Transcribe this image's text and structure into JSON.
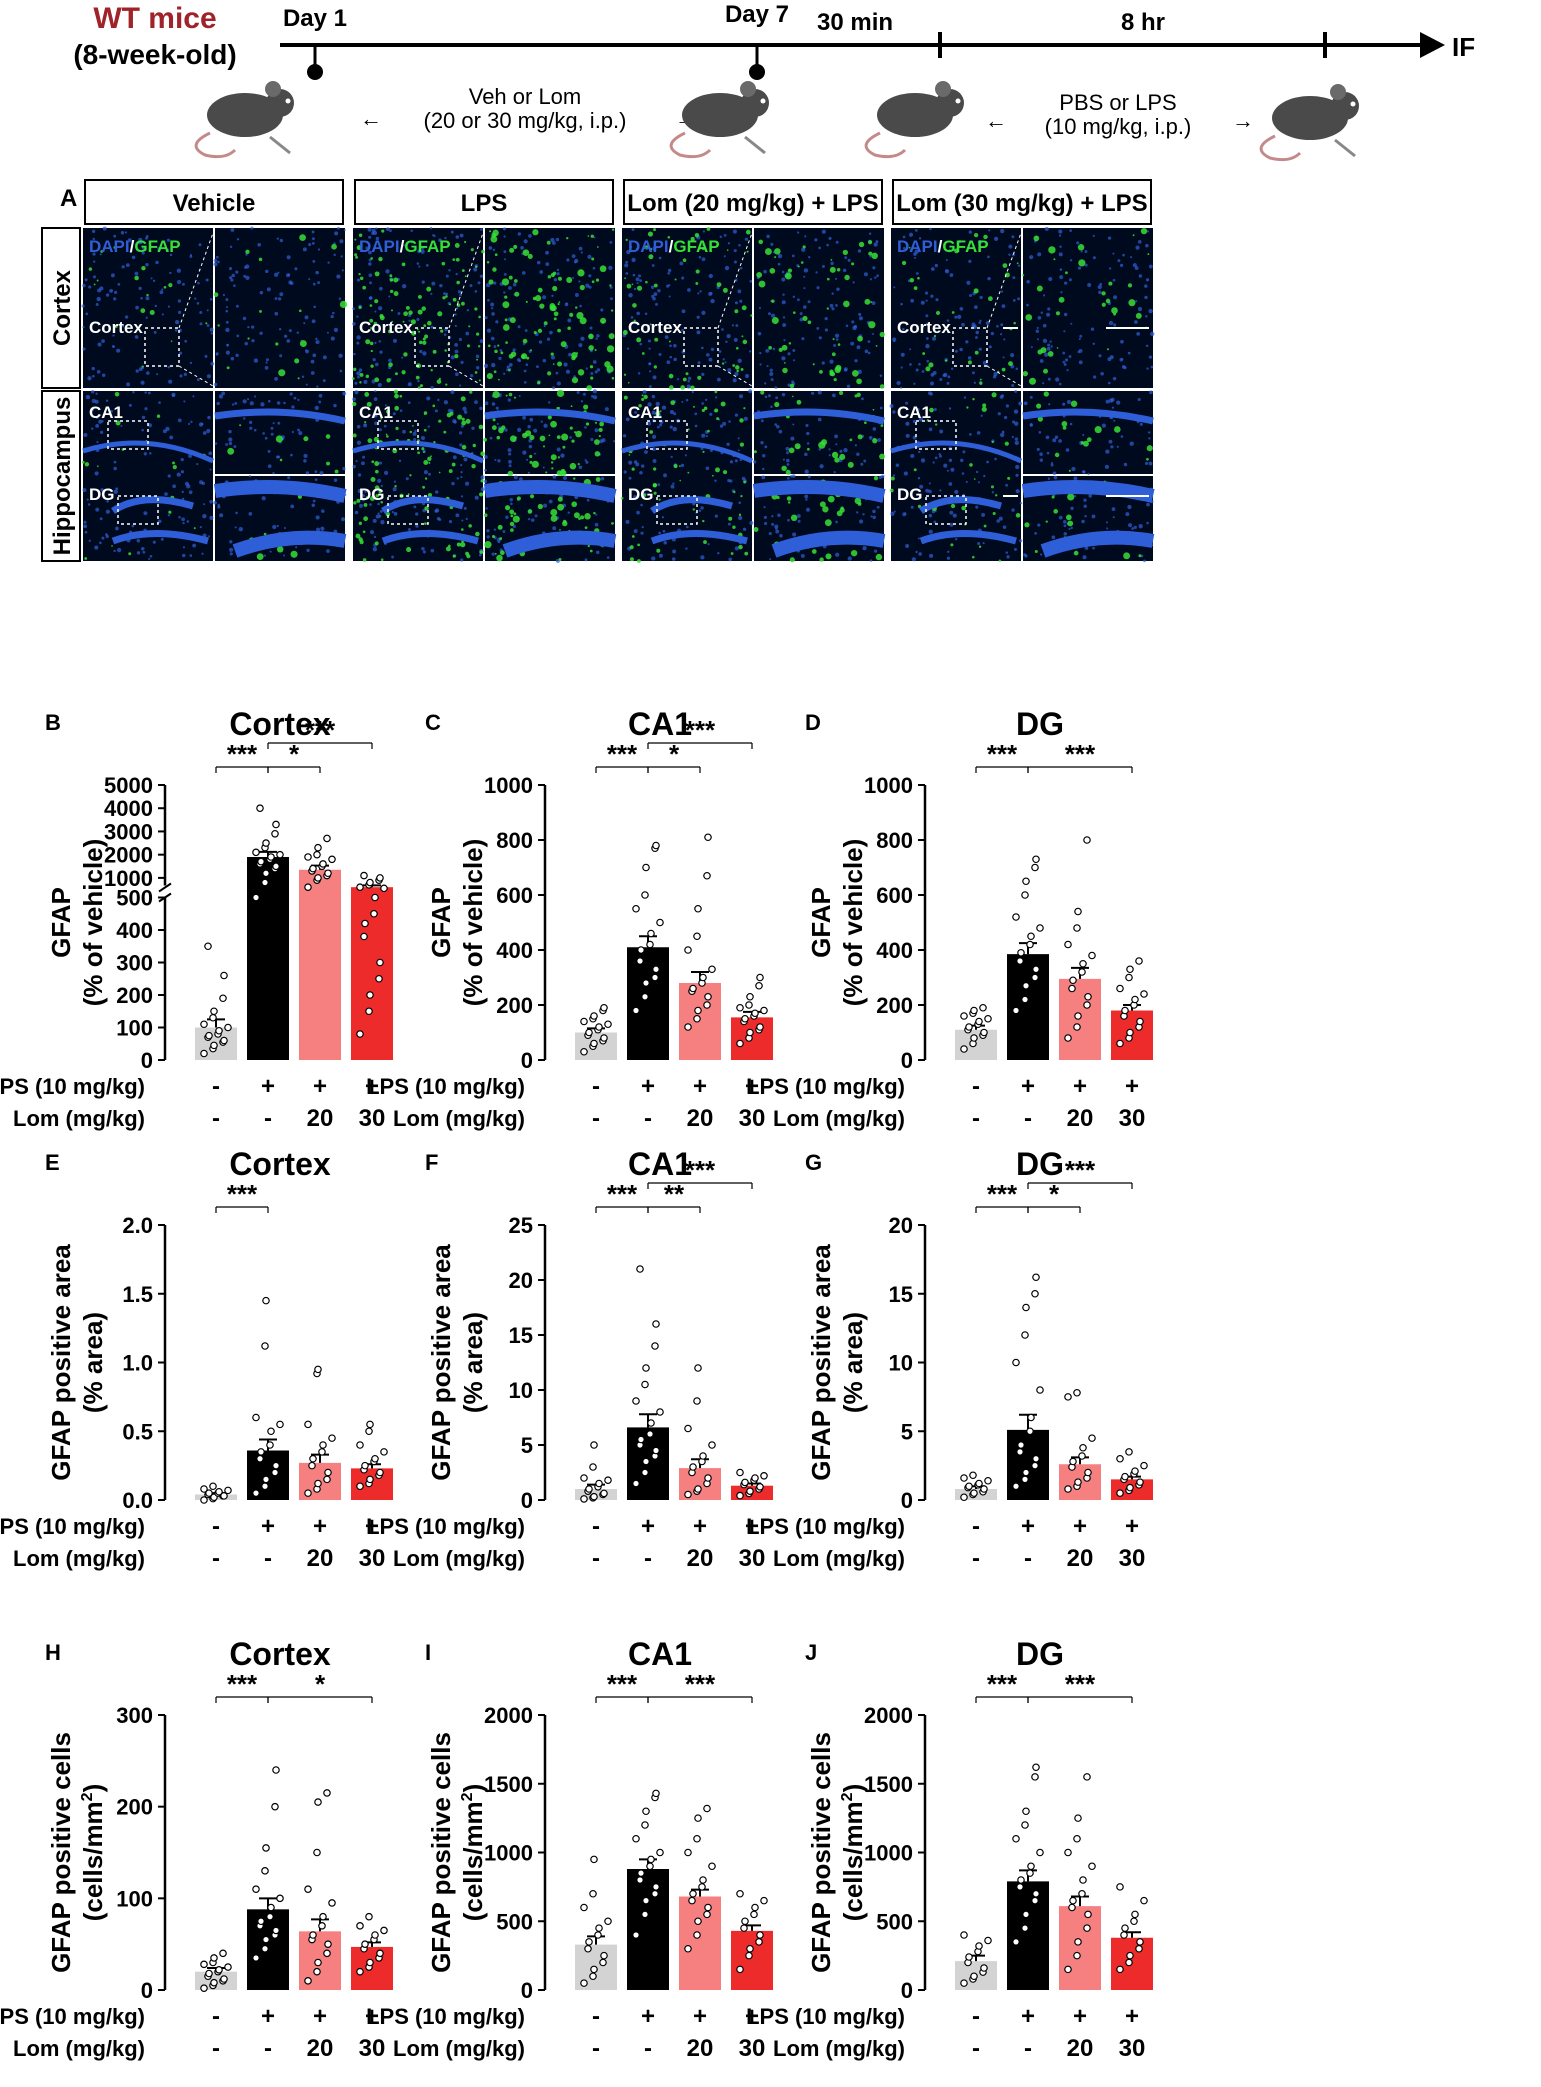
{
  "timeline": {
    "strain": "WT mice",
    "age": "(8-week-old)",
    "day1": "Day 1",
    "day7": "Day 7",
    "t30": "30 min",
    "t8": "8 hr",
    "end": "IF",
    "tx1_line1": "Veh or Lom",
    "tx1_line2": "(20 or 30 mg/kg, i.p.)",
    "tx2_line1": "PBS or LPS",
    "tx2_line2": "(10 mg/kg, i.p.)",
    "colors": {
      "strain": "#a0232a",
      "mouse": "#4a4a4a"
    }
  },
  "panelA": {
    "letter": "A",
    "groups": [
      "Vehicle",
      "LPS",
      "Lom (20 mg/kg) + LPS",
      "Lom (30 mg/kg) + LPS"
    ],
    "rows": [
      "Cortex",
      "Hippocampus"
    ],
    "stain_dapi": "DAPI",
    "stain_sep": "/",
    "stain_gfap": "GFAP",
    "region_cortex": "Cortex",
    "region_ca1": "CA1",
    "region_dg": "DG",
    "gfap_intensity": [
      0.15,
      1.0,
      0.55,
      0.3
    ],
    "colors": {
      "dapi": "#2f5fd8",
      "gfap": "#36e036"
    }
  },
  "legend_rows": {
    "lps_label": "LPS (10 mg/kg)",
    "lom_label": "Lom (mg/kg)",
    "lps_values": [
      "-",
      "+",
      "+",
      "+"
    ],
    "lom_values": [
      "-",
      "-",
      "20",
      "30"
    ]
  },
  "bar_colors": [
    "#d3d3d3",
    "#000000",
    "#f68080",
    "#ee2b2b"
  ],
  "chart_data": [
    {
      "type": "bar",
      "panel": "B",
      "title": "Cortex",
      "ylabel_line1": "GFAP",
      "ylabel_line2": "(% of vehicle)",
      "broken_axis": true,
      "ticks_low": [
        "0",
        "100",
        "200",
        "300",
        "400",
        "500"
      ],
      "ticks_high": [
        "1000",
        "2000",
        "3000",
        "4000",
        "5000"
      ],
      "ylim_low": [
        0,
        500
      ],
      "ylim_high": [
        500,
        5000
      ],
      "categories": [
        "Vehicle",
        "LPS",
        "Lom20+LPS",
        "Lom30+LPS"
      ],
      "values": [
        100,
        1900,
        1350,
        600
      ],
      "errors": [
        25,
        220,
        180,
        80
      ],
      "points": [
        [
          20,
          35,
          45,
          55,
          60,
          70,
          75,
          80,
          90,
          100,
          110,
          130,
          150,
          190,
          260,
          350
        ],
        [
          500,
          800,
          1200,
          1400,
          1500,
          1600,
          1700,
          1800,
          1900,
          2000,
          2100,
          2300,
          2500,
          2900,
          3300,
          4000
        ],
        [
          600,
          900,
          1000,
          1100,
          1200,
          1300,
          1400,
          1500,
          1600,
          1800,
          1900,
          2000,
          2300,
          2700
        ],
        [
          80,
          150,
          200,
          250,
          300,
          380,
          420,
          450,
          500,
          550,
          600,
          700,
          800,
          900,
          1000,
          1100
        ]
      ],
      "sig": [
        {
          "from": 0,
          "to": 1,
          "label": "***",
          "level": 0
        },
        {
          "from": 1,
          "to": 2,
          "label": "*",
          "level": 0
        },
        {
          "from": 1,
          "to": 3,
          "label": "***",
          "level": 1
        }
      ]
    },
    {
      "type": "bar",
      "panel": "C",
      "title": "CA1",
      "ylabel_line1": "GFAP",
      "ylabel_line2": "(% of vehicle)",
      "ticks": [
        "0",
        "200",
        "400",
        "600",
        "800",
        "1000"
      ],
      "ylim": [
        0,
        1000
      ],
      "categories": [
        "Vehicle",
        "LPS",
        "Lom20+LPS",
        "Lom30+LPS"
      ],
      "values": [
        100,
        410,
        280,
        155
      ],
      "errors": [
        15,
        40,
        40,
        20
      ],
      "points": [
        [
          30,
          50,
          60,
          70,
          80,
          90,
          100,
          110,
          120,
          130,
          140,
          150,
          160,
          180,
          190
        ],
        [
          180,
          230,
          280,
          300,
          330,
          360,
          400,
          420,
          460,
          500,
          550,
          600,
          700,
          770,
          780
        ],
        [
          120,
          150,
          180,
          200,
          230,
          250,
          260,
          280,
          300,
          330,
          400,
          450,
          550,
          670,
          810
        ],
        [
          60,
          80,
          100,
          110,
          120,
          140,
          150,
          160,
          170,
          180,
          190,
          200,
          230,
          270,
          300
        ]
      ],
      "sig": [
        {
          "from": 0,
          "to": 1,
          "label": "***",
          "level": 0
        },
        {
          "from": 1,
          "to": 2,
          "label": "*",
          "level": 0
        },
        {
          "from": 1,
          "to": 3,
          "label": "***",
          "level": 1
        }
      ]
    },
    {
      "type": "bar",
      "panel": "D",
      "title": "DG",
      "ylabel_line1": "GFAP",
      "ylabel_line2": "(% of vehicle)",
      "ticks": [
        "0",
        "200",
        "400",
        "600",
        "800",
        "1000"
      ],
      "ylim": [
        0,
        1000
      ],
      "categories": [
        "Vehicle",
        "LPS",
        "Lom20+LPS",
        "Lom30+LPS"
      ],
      "values": [
        110,
        385,
        295,
        180
      ],
      "errors": [
        15,
        40,
        40,
        20
      ],
      "points": [
        [
          40,
          60,
          80,
          90,
          100,
          110,
          120,
          130,
          140,
          150,
          160,
          170,
          180,
          190
        ],
        [
          180,
          220,
          270,
          300,
          330,
          360,
          390,
          420,
          450,
          480,
          520,
          600,
          650,
          700,
          730
        ],
        [
          80,
          120,
          160,
          200,
          230,
          260,
          290,
          320,
          350,
          380,
          420,
          480,
          540,
          800
        ],
        [
          60,
          80,
          100,
          120,
          140,
          160,
          180,
          200,
          220,
          240,
          260,
          300,
          330,
          360
        ]
      ],
      "sig": [
        {
          "from": 0,
          "to": 1,
          "label": "***",
          "level": 0
        },
        {
          "from": 1,
          "to": 3,
          "label": "***",
          "level": 0
        }
      ]
    },
    {
      "type": "bar",
      "panel": "E",
      "title": "Cortex",
      "ylabel_line1": "GFAP positive area",
      "ylabel_line2": "(% area)",
      "ticks": [
        "0.0",
        "0.5",
        "1.0",
        "1.5",
        "2.0"
      ],
      "ylim": [
        0,
        2
      ],
      "categories": [
        "Vehicle",
        "LPS",
        "Lom20+LPS",
        "Lom30+LPS"
      ],
      "values": [
        0.04,
        0.36,
        0.27,
        0.23
      ],
      "errors": [
        0.01,
        0.08,
        0.06,
        0.03
      ],
      "points": [
        [
          0.0,
          0.01,
          0.02,
          0.03,
          0.03,
          0.04,
          0.05,
          0.05,
          0.06,
          0.07,
          0.08,
          0.1
        ],
        [
          0.05,
          0.1,
          0.15,
          0.2,
          0.25,
          0.3,
          0.35,
          0.4,
          0.5,
          0.55,
          0.6,
          1.12,
          1.45
        ],
        [
          0.05,
          0.08,
          0.12,
          0.15,
          0.2,
          0.25,
          0.3,
          0.35,
          0.4,
          0.45,
          0.55,
          0.92,
          0.95
        ],
        [
          0.1,
          0.12,
          0.15,
          0.18,
          0.2,
          0.22,
          0.25,
          0.28,
          0.3,
          0.35,
          0.4,
          0.5,
          0.55
        ]
      ],
      "sig": [
        {
          "from": 0,
          "to": 1,
          "label": "***",
          "level": 0
        }
      ]
    },
    {
      "type": "bar",
      "panel": "F",
      "title": "CA1",
      "ylabel_line1": "GFAP positive area",
      "ylabel_line2": "(% area)",
      "ticks": [
        "0",
        "5",
        "10",
        "15",
        "20",
        "25"
      ],
      "ylim": [
        0,
        25
      ],
      "categories": [
        "Vehicle",
        "LPS",
        "Lom20+LPS",
        "Lom30+LPS"
      ],
      "values": [
        1.0,
        6.6,
        2.9,
        1.3
      ],
      "errors": [
        0.4,
        1.2,
        0.8,
        0.2
      ],
      "points": [
        [
          0.1,
          0.2,
          0.3,
          0.5,
          0.6,
          0.8,
          1.0,
          1.2,
          1.5,
          1.8,
          2.0,
          3.0,
          5.0
        ],
        [
          1.5,
          2.5,
          3.5,
          4.0,
          4.5,
          5.0,
          5.5,
          6.0,
          7.0,
          8.0,
          9.0,
          10.5,
          12.0,
          14.0,
          16.0,
          21.0
        ],
        [
          0.5,
          0.8,
          1.0,
          1.5,
          2.0,
          2.5,
          3.0,
          3.5,
          4.0,
          5.0,
          6.5,
          9.0,
          12.0
        ],
        [
          0.4,
          0.6,
          0.8,
          1.0,
          1.2,
          1.4,
          1.6,
          1.8,
          2.0,
          2.2,
          2.5
        ]
      ],
      "sig": [
        {
          "from": 0,
          "to": 1,
          "label": "***",
          "level": 0
        },
        {
          "from": 1,
          "to": 2,
          "label": "**",
          "level": 0
        },
        {
          "from": 1,
          "to": 3,
          "label": "***",
          "level": 1
        }
      ]
    },
    {
      "type": "bar",
      "panel": "G",
      "title": "DG",
      "ylabel_line1": "GFAP positive area",
      "ylabel_line2": "(% area)",
      "ticks": [
        "0",
        "5",
        "10",
        "15",
        "20"
      ],
      "ylim": [
        0,
        20
      ],
      "categories": [
        "Vehicle",
        "LPS",
        "Lom20+LPS",
        "Lom30+LPS"
      ],
      "values": [
        0.8,
        5.1,
        2.6,
        1.5
      ],
      "errors": [
        0.2,
        1.1,
        0.5,
        0.2
      ],
      "points": [
        [
          0.2,
          0.4,
          0.5,
          0.6,
          0.8,
          0.9,
          1.0,
          1.1,
          1.2,
          1.4,
          1.6,
          1.8
        ],
        [
          1.0,
          1.5,
          2.0,
          2.5,
          3.0,
          3.5,
          4.0,
          5.0,
          6.0,
          8.0,
          10.0,
          12.0,
          14.0,
          15.0,
          16.2
        ],
        [
          0.8,
          1.0,
          1.3,
          1.6,
          2.0,
          2.4,
          2.8,
          3.2,
          3.8,
          4.5,
          7.5,
          7.8
        ],
        [
          0.5,
          0.7,
          0.9,
          1.1,
          1.3,
          1.5,
          1.7,
          1.9,
          2.1,
          2.5,
          3.0,
          3.5
        ]
      ],
      "sig": [
        {
          "from": 0,
          "to": 1,
          "label": "***",
          "level": 0
        },
        {
          "from": 1,
          "to": 2,
          "label": "*",
          "level": 0
        },
        {
          "from": 1,
          "to": 3,
          "label": "***",
          "level": 1
        }
      ]
    },
    {
      "type": "bar",
      "panel": "H",
      "title": "Cortex",
      "ylabel_line1": "GFAP positive cells",
      "ylabel_line2": "(cells/mm",
      "ticks": [
        "0",
        "100",
        "200",
        "300"
      ],
      "ylim": [
        0,
        300
      ],
      "categories": [
        "Vehicle",
        "LPS",
        "Lom20+LPS",
        "Lom30+LPS"
      ],
      "values": [
        20,
        88,
        64,
        47
      ],
      "errors": [
        4,
        12,
        13,
        5
      ],
      "points": [
        [
          2,
          5,
          8,
          10,
          12,
          15,
          18,
          20,
          22,
          25,
          28,
          30,
          35,
          40
        ],
        [
          35,
          45,
          55,
          60,
          65,
          70,
          75,
          80,
          90,
          100,
          110,
          130,
          155,
          200,
          240
        ],
        [
          10,
          20,
          30,
          40,
          50,
          55,
          60,
          70,
          80,
          95,
          110,
          150,
          205,
          215
        ],
        [
          20,
          25,
          30,
          35,
          40,
          45,
          50,
          55,
          60,
          65,
          70,
          80
        ]
      ],
      "sig": [
        {
          "from": 0,
          "to": 1,
          "label": "***",
          "level": 0
        },
        {
          "from": 1,
          "to": 3,
          "label": "*",
          "level": 0
        }
      ]
    },
    {
      "type": "bar",
      "panel": "I",
      "title": "CA1",
      "ylabel_line1": "GFAP positive cells",
      "ylabel_line2": "(cells/mm",
      "ticks": [
        "0",
        "500",
        "1000",
        "1500",
        "2000"
      ],
      "ylim": [
        0,
        2000
      ],
      "categories": [
        "Vehicle",
        "LPS",
        "Lom20+LPS",
        "Lom30+LPS"
      ],
      "values": [
        330,
        880,
        680,
        430
      ],
      "errors": [
        60,
        70,
        50,
        40
      ],
      "points": [
        [
          50,
          100,
          150,
          200,
          250,
          300,
          350,
          400,
          450,
          500,
          600,
          700,
          950
        ],
        [
          400,
          550,
          650,
          700,
          750,
          800,
          850,
          900,
          950,
          1000,
          1100,
          1200,
          1300,
          1400,
          1430
        ],
        [
          300,
          400,
          500,
          550,
          600,
          650,
          700,
          750,
          800,
          900,
          1000,
          1100,
          1250,
          1320
        ],
        [
          150,
          250,
          300,
          350,
          400,
          450,
          500,
          550,
          600,
          650,
          700
        ]
      ],
      "sig": [
        {
          "from": 0,
          "to": 1,
          "label": "***",
          "level": 0
        },
        {
          "from": 1,
          "to": 3,
          "label": "***",
          "level": 0
        }
      ]
    },
    {
      "type": "bar",
      "panel": "J",
      "title": "DG",
      "ylabel_line1": "GFAP positive cells",
      "ylabel_line2": "(cells/mm",
      "ticks": [
        "0",
        "500",
        "1000",
        "1500",
        "2000"
      ],
      "ylim": [
        0,
        2000
      ],
      "categories": [
        "Vehicle",
        "LPS",
        "Lom20+LPS",
        "Lom30+LPS"
      ],
      "values": [
        210,
        790,
        610,
        380
      ],
      "errors": [
        40,
        80,
        70,
        40
      ],
      "points": [
        [
          50,
          80,
          100,
          130,
          160,
          200,
          240,
          280,
          320,
          360,
          400
        ],
        [
          350,
          450,
          550,
          650,
          700,
          750,
          800,
          850,
          900,
          1000,
          1100,
          1200,
          1300,
          1550,
          1620
        ],
        [
          150,
          250,
          350,
          450,
          550,
          600,
          650,
          700,
          800,
          900,
          1000,
          1100,
          1250,
          1550
        ],
        [
          150,
          200,
          250,
          300,
          350,
          400,
          450,
          500,
          550,
          650,
          750
        ]
      ],
      "sig": [
        {
          "from": 0,
          "to": 1,
          "label": "***",
          "level": 0
        },
        {
          "from": 1,
          "to": 3,
          "label": "***",
          "level": 0
        }
      ]
    }
  ]
}
